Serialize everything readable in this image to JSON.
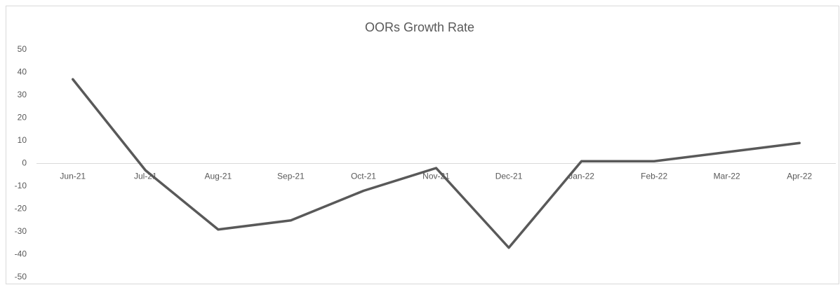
{
  "chart_data": {
    "type": "line",
    "title": "OORs Growth Rate",
    "categories": [
      "Jun-21",
      "Jul-21",
      "Aug-21",
      "Sep-21",
      "Oct-21",
      "Nov-21",
      "Dec-21",
      "Jan-22",
      "Feb-22",
      "Mar-22",
      "Apr-22"
    ],
    "series": [
      {
        "name": "OORs Growth Rate",
        "color": "#595959",
        "values": [
          37,
          -3,
          -29,
          -25,
          -12,
          -2,
          -37,
          1,
          1,
          5,
          9
        ]
      }
    ],
    "ylim": [
      -50,
      50
    ],
    "yticks": [
      -50,
      -40,
      -30,
      -20,
      -10,
      0,
      10,
      20,
      30,
      40,
      50
    ],
    "grid": false
  }
}
